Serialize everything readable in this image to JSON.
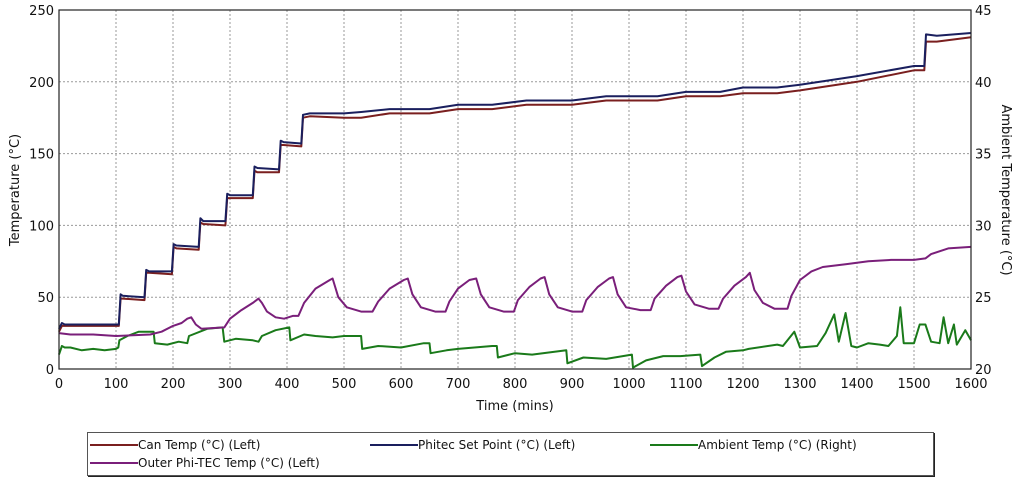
{
  "chart_data": {
    "type": "line",
    "title": "",
    "xlabel": "Time (mins)",
    "ylabel": "Temperature (°C)",
    "y2label": "Ambient Temperature (°C)",
    "xlim": [
      0,
      1600
    ],
    "ylim": [
      0,
      250
    ],
    "y2lim": [
      20,
      45
    ],
    "xticks": [
      "0",
      "100",
      "200",
      "300",
      "400",
      "500",
      "600",
      "700",
      "800",
      "900",
      "1000",
      "1100",
      "1200",
      "1300",
      "1400",
      "1500",
      "1600"
    ],
    "yticks": [
      "0",
      "50",
      "100",
      "150",
      "200",
      "250"
    ],
    "y2ticks": [
      "20",
      "25",
      "30",
      "35",
      "40",
      "45"
    ],
    "grid": true,
    "legend_position": "bottom",
    "series": [
      {
        "name": "Can Temp (°C) (Left)",
        "axis": "left",
        "color": "#7a1f1f",
        "points": [
          [
            0,
            26
          ],
          [
            5,
            30
          ],
          [
            10,
            30
          ],
          [
            105,
            30
          ],
          [
            108,
            49
          ],
          [
            112,
            49
          ],
          [
            150,
            48
          ],
          [
            153,
            67
          ],
          [
            158,
            67
          ],
          [
            198,
            66
          ],
          [
            201,
            85
          ],
          [
            206,
            84
          ],
          [
            245,
            83
          ],
          [
            248,
            102
          ],
          [
            253,
            101
          ],
          [
            292,
            100
          ],
          [
            295,
            119
          ],
          [
            300,
            119
          ],
          [
            340,
            119
          ],
          [
            343,
            138
          ],
          [
            348,
            137
          ],
          [
            386,
            137
          ],
          [
            389,
            156
          ],
          [
            394,
            156
          ],
          [
            425,
            155
          ],
          [
            428,
            175
          ],
          [
            440,
            176
          ],
          [
            500,
            175
          ],
          [
            530,
            175
          ],
          [
            580,
            178
          ],
          [
            650,
            178
          ],
          [
            700,
            181
          ],
          [
            760,
            181
          ],
          [
            820,
            184
          ],
          [
            900,
            184
          ],
          [
            960,
            187
          ],
          [
            1050,
            187
          ],
          [
            1100,
            190
          ],
          [
            1160,
            190
          ],
          [
            1200,
            192
          ],
          [
            1260,
            192
          ],
          [
            1300,
            194
          ],
          [
            1400,
            200
          ],
          [
            1500,
            208
          ],
          [
            1518,
            208
          ],
          [
            1521,
            228
          ],
          [
            1540,
            228
          ],
          [
            1600,
            231
          ]
        ]
      },
      {
        "name": "Phitec Set Point (°C) (Left)",
        "axis": "left",
        "color": "#1a1f5e",
        "points": [
          [
            0,
            28
          ],
          [
            5,
            32
          ],
          [
            10,
            31
          ],
          [
            105,
            31
          ],
          [
            108,
            52
          ],
          [
            112,
            51
          ],
          [
            150,
            50
          ],
          [
            153,
            69
          ],
          [
            158,
            68
          ],
          [
            198,
            68
          ],
          [
            201,
            87
          ],
          [
            206,
            86
          ],
          [
            245,
            85
          ],
          [
            248,
            105
          ],
          [
            253,
            103
          ],
          [
            292,
            103
          ],
          [
            295,
            122
          ],
          [
            300,
            121
          ],
          [
            340,
            121
          ],
          [
            343,
            141
          ],
          [
            348,
            140
          ],
          [
            386,
            139
          ],
          [
            389,
            159
          ],
          [
            394,
            158
          ],
          [
            425,
            157
          ],
          [
            428,
            177
          ],
          [
            440,
            178
          ],
          [
            500,
            178
          ],
          [
            530,
            179
          ],
          [
            580,
            181
          ],
          [
            650,
            181
          ],
          [
            700,
            184
          ],
          [
            760,
            184
          ],
          [
            820,
            187
          ],
          [
            900,
            187
          ],
          [
            960,
            190
          ],
          [
            1050,
            190
          ],
          [
            1100,
            193
          ],
          [
            1160,
            193
          ],
          [
            1200,
            196
          ],
          [
            1260,
            196
          ],
          [
            1300,
            198
          ],
          [
            1400,
            204
          ],
          [
            1500,
            211
          ],
          [
            1518,
            211
          ],
          [
            1521,
            233
          ],
          [
            1540,
            232
          ],
          [
            1600,
            234
          ]
        ]
      },
      {
        "name": "Ambient Temp (°C) (Right)",
        "axis": "right",
        "color": "#1a7a1a",
        "points": [
          [
            0,
            21.0
          ],
          [
            5,
            21.6
          ],
          [
            10,
            21.5
          ],
          [
            20,
            21.5
          ],
          [
            40,
            21.3
          ],
          [
            60,
            21.4
          ],
          [
            80,
            21.3
          ],
          [
            100,
            21.4
          ],
          [
            104,
            21.5
          ],
          [
            106,
            22.0
          ],
          [
            120,
            22.3
          ],
          [
            140,
            22.6
          ],
          [
            160,
            22.6
          ],
          [
            166,
            22.6
          ],
          [
            168,
            21.8
          ],
          [
            190,
            21.7
          ],
          [
            210,
            21.9
          ],
          [
            225,
            21.8
          ],
          [
            228,
            22.3
          ],
          [
            260,
            22.8
          ],
          [
            287,
            22.9
          ],
          [
            290,
            21.9
          ],
          [
            310,
            22.1
          ],
          [
            340,
            22.0
          ],
          [
            350,
            21.9
          ],
          [
            356,
            22.3
          ],
          [
            380,
            22.7
          ],
          [
            404,
            22.9
          ],
          [
            406,
            22.0
          ],
          [
            430,
            22.4
          ],
          [
            450,
            22.3
          ],
          [
            480,
            22.2
          ],
          [
            500,
            22.3
          ],
          [
            530,
            22.3
          ],
          [
            532,
            21.4
          ],
          [
            560,
            21.6
          ],
          [
            600,
            21.5
          ],
          [
            640,
            21.8
          ],
          [
            650,
            21.8
          ],
          [
            652,
            21.1
          ],
          [
            680,
            21.3
          ],
          [
            700,
            21.4
          ],
          [
            760,
            21.6
          ],
          [
            768,
            21.6
          ],
          [
            770,
            20.8
          ],
          [
            800,
            21.1
          ],
          [
            830,
            21.0
          ],
          [
            890,
            21.3
          ],
          [
            892,
            20.4
          ],
          [
            920,
            20.8
          ],
          [
            960,
            20.7
          ],
          [
            1005,
            21.0
          ],
          [
            1007,
            20.1
          ],
          [
            1030,
            20.6
          ],
          [
            1060,
            20.9
          ],
          [
            1090,
            20.9
          ],
          [
            1125,
            21.0
          ],
          [
            1128,
            20.2
          ],
          [
            1150,
            20.8
          ],
          [
            1170,
            21.2
          ],
          [
            1200,
            21.3
          ],
          [
            1210,
            21.4
          ],
          [
            1260,
            21.7
          ],
          [
            1270,
            21.6
          ],
          [
            1290,
            22.6
          ],
          [
            1300,
            21.5
          ],
          [
            1330,
            21.6
          ],
          [
            1345,
            22.5
          ],
          [
            1360,
            23.8
          ],
          [
            1368,
            21.9
          ],
          [
            1380,
            23.9
          ],
          [
            1390,
            21.6
          ],
          [
            1400,
            21.5
          ],
          [
            1420,
            21.8
          ],
          [
            1440,
            21.7
          ],
          [
            1455,
            21.6
          ],
          [
            1470,
            22.3
          ],
          [
            1476,
            24.3
          ],
          [
            1482,
            21.8
          ],
          [
            1500,
            21.8
          ],
          [
            1510,
            23.1
          ],
          [
            1520,
            23.1
          ],
          [
            1530,
            21.9
          ],
          [
            1545,
            21.8
          ],
          [
            1552,
            23.6
          ],
          [
            1560,
            21.8
          ],
          [
            1570,
            23.1
          ],
          [
            1575,
            21.7
          ],
          [
            1590,
            22.7
          ],
          [
            1600,
            22.0
          ]
        ]
      },
      {
        "name": "Outer Phi-TEC Temp (°C) (Left)",
        "axis": "left",
        "color": "#7a1f7a",
        "points": [
          [
            0,
            25
          ],
          [
            20,
            24
          ],
          [
            60,
            24
          ],
          [
            100,
            23
          ],
          [
            160,
            24
          ],
          [
            180,
            26
          ],
          [
            200,
            30
          ],
          [
            215,
            32
          ],
          [
            225,
            35
          ],
          [
            232,
            36
          ],
          [
            240,
            31
          ],
          [
            250,
            28
          ],
          [
            290,
            29
          ],
          [
            300,
            35
          ],
          [
            320,
            41
          ],
          [
            340,
            46
          ],
          [
            350,
            49
          ],
          [
            356,
            46
          ],
          [
            365,
            40
          ],
          [
            380,
            36
          ],
          [
            395,
            35
          ],
          [
            410,
            37
          ],
          [
            420,
            37
          ],
          [
            430,
            46
          ],
          [
            450,
            56
          ],
          [
            475,
            62
          ],
          [
            480,
            63
          ],
          [
            490,
            50
          ],
          [
            505,
            43
          ],
          [
            530,
            40
          ],
          [
            550,
            40
          ],
          [
            560,
            47
          ],
          [
            580,
            56
          ],
          [
            605,
            62
          ],
          [
            612,
            63
          ],
          [
            620,
            52
          ],
          [
            635,
            43
          ],
          [
            660,
            40
          ],
          [
            678,
            40
          ],
          [
            685,
            47
          ],
          [
            700,
            56
          ],
          [
            720,
            62
          ],
          [
            732,
            63
          ],
          [
            740,
            52
          ],
          [
            755,
            43
          ],
          [
            780,
            40
          ],
          [
            798,
            40
          ],
          [
            805,
            48
          ],
          [
            825,
            57
          ],
          [
            845,
            63
          ],
          [
            852,
            64
          ],
          [
            860,
            52
          ],
          [
            875,
            43
          ],
          [
            900,
            40
          ],
          [
            918,
            40
          ],
          [
            925,
            48
          ],
          [
            945,
            57
          ],
          [
            965,
            63
          ],
          [
            972,
            64
          ],
          [
            980,
            52
          ],
          [
            995,
            43
          ],
          [
            1020,
            41
          ],
          [
            1038,
            41
          ],
          [
            1045,
            49
          ],
          [
            1065,
            58
          ],
          [
            1085,
            64
          ],
          [
            1092,
            65
          ],
          [
            1100,
            54
          ],
          [
            1115,
            45
          ],
          [
            1140,
            42
          ],
          [
            1157,
            42
          ],
          [
            1165,
            49
          ],
          [
            1185,
            58
          ],
          [
            1205,
            64
          ],
          [
            1212,
            67
          ],
          [
            1220,
            55
          ],
          [
            1235,
            46
          ],
          [
            1255,
            42
          ],
          [
            1278,
            42
          ],
          [
            1285,
            51
          ],
          [
            1300,
            62
          ],
          [
            1320,
            68
          ],
          [
            1340,
            71
          ],
          [
            1380,
            73
          ],
          [
            1420,
            75
          ],
          [
            1460,
            76
          ],
          [
            1500,
            76
          ],
          [
            1520,
            77
          ],
          [
            1530,
            80
          ],
          [
            1560,
            84
          ],
          [
            1600,
            85
          ]
        ]
      }
    ]
  },
  "legend": {
    "items": [
      {
        "label": "Can Temp (°C) (Left)",
        "color": "#7a1f1f"
      },
      {
        "label": "Phitec Set Point (°C) (Left)",
        "color": "#1a1f5e"
      },
      {
        "label": "Ambient Temp (°C) (Right)",
        "color": "#1a7a1a"
      },
      {
        "label": "Outer Phi-TEC Temp (°C) (Left)",
        "color": "#7a1f7a"
      }
    ]
  },
  "axes": {
    "x_title": "Time (mins)",
    "y_title": "Temperature (°C)",
    "y2_title": "Ambient Temperature (°C)"
  }
}
